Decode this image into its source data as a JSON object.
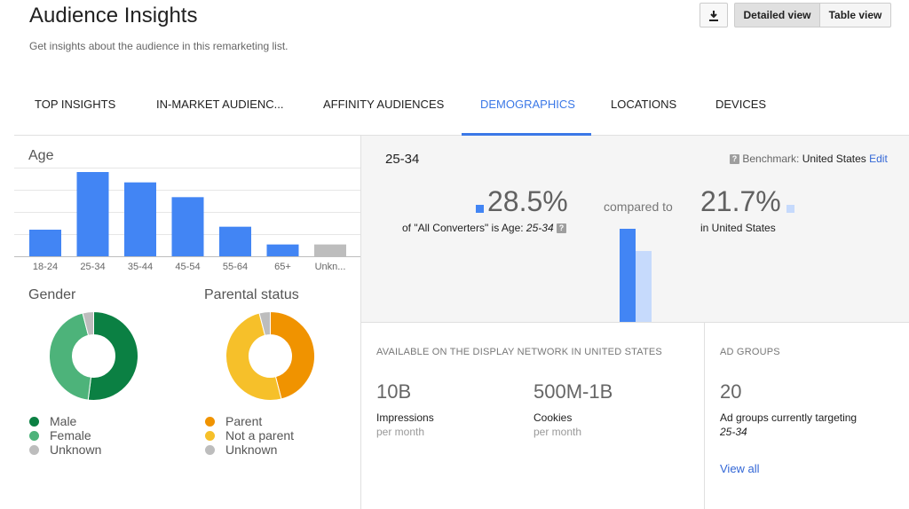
{
  "header": {
    "title": "Audience Insights",
    "subtitle": "Get insights about the audience in this remarketing list.",
    "download_icon": "download-icon",
    "detailed_view_label": "Detailed view",
    "table_view_label": "Table view"
  },
  "tabs": [
    {
      "label": "TOP INSIGHTS"
    },
    {
      "label": "IN-MARKET AUDIENC..."
    },
    {
      "label": "AFFINITY AUDIENCES"
    },
    {
      "label": "DEMOGRAPHICS"
    },
    {
      "label": "LOCATIONS"
    },
    {
      "label": "DEVICES"
    }
  ],
  "age": {
    "label": "Age"
  },
  "chart_data": [
    {
      "type": "bar",
      "title": "Age",
      "categories": [
        "18-24",
        "25-34",
        "35-44",
        "45-54",
        "55-64",
        "65+",
        "Unkn..."
      ],
      "values": [
        9,
        28.5,
        25,
        20,
        10,
        4,
        4
      ],
      "colors": [
        "#4285f4",
        "#4285f4",
        "#4285f4",
        "#4285f4",
        "#4285f4",
        "#4285f4",
        "#bdbdbd"
      ],
      "ylim": [
        0,
        30
      ],
      "grid": true
    },
    {
      "type": "pie",
      "title": "Gender",
      "series": [
        {
          "name": "Male",
          "value": 52,
          "color": "#0b8043"
        },
        {
          "name": "Female",
          "value": 44,
          "color": "#4db37a"
        },
        {
          "name": "Unknown",
          "value": 4,
          "color": "#bdbdbd"
        }
      ]
    },
    {
      "type": "pie",
      "title": "Parental status",
      "series": [
        {
          "name": "Parent",
          "value": 46,
          "color": "#f09300"
        },
        {
          "name": "Not a parent",
          "value": 50,
          "color": "#f6c02a"
        },
        {
          "name": "Unknown",
          "value": 4,
          "color": "#bdbdbd"
        }
      ]
    },
    {
      "type": "bar",
      "categories": [
        "25-34"
      ],
      "series": [
        {
          "name": "All Converters",
          "values": [
            28.5
          ],
          "color": "#4285f4"
        },
        {
          "name": "United States",
          "values": [
            21.7
          ],
          "color": "#c6dafc"
        }
      ]
    }
  ],
  "gender": {
    "label": "Gender",
    "legend": [
      {
        "label": "Male",
        "color": "#0b8043"
      },
      {
        "label": "Female",
        "color": "#4db37a"
      },
      {
        "label": "Unknown",
        "color": "#bdbdbd"
      }
    ]
  },
  "parental": {
    "label": "Parental status",
    "legend": [
      {
        "label": "Parent",
        "color": "#f09300"
      },
      {
        "label": "Not a parent",
        "color": "#f6c02a"
      },
      {
        "label": "Unknown",
        "color": "#bdbdbd"
      }
    ]
  },
  "comparison": {
    "segment": "25-34",
    "benchmark_label": "Benchmark:",
    "benchmark_value": "United States",
    "edit_label": "Edit",
    "pct_value": "28.5%",
    "pct_desc_prefix": "of \"All Converters\" is Age: ",
    "pct_desc_segment": "25-34",
    "compared_to": "compared to",
    "benchmark_pct": "21.7%",
    "benchmark_desc": "in United States",
    "primary_color": "#4285f4",
    "benchmark_color": "#c6dafc"
  },
  "display_network": {
    "header": "AVAILABLE ON THE DISPLAY NETWORK IN UNITED STATES",
    "impressions_value": "10B",
    "impressions_label": "Impressions",
    "impressions_sub": "per month",
    "cookies_value": "500M-1B",
    "cookies_label": "Cookies",
    "cookies_sub": "per month"
  },
  "ad_groups": {
    "header": "AD GROUPS",
    "count": "20",
    "label": "Ad groups currently targeting",
    "segment": "25-34",
    "view_all": "View all"
  }
}
